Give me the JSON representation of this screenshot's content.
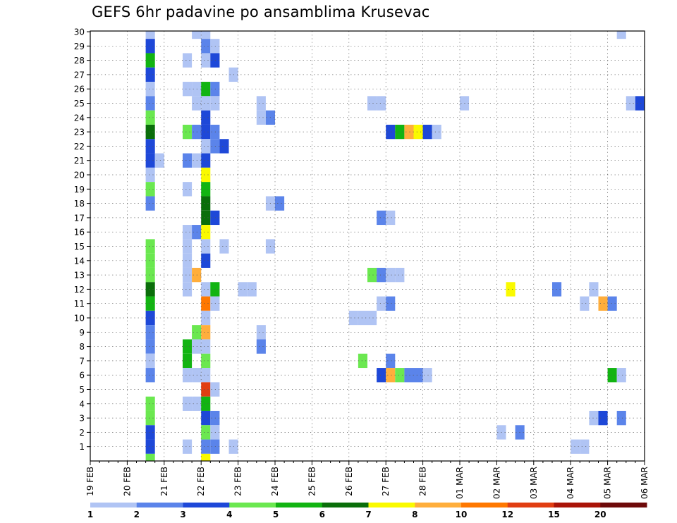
{
  "chart_data": {
    "type": "heatmap",
    "title": "GEFS 6hr padavine po ansamblima Krusevac",
    "xlabel": "",
    "ylabel": "",
    "x_tick_labels": [
      "19 FEB",
      "20 FEB",
      "21 FEB",
      "22 FEB",
      "23 FEB",
      "24 FEB",
      "25 FEB",
      "26 FEB",
      "27 FEB",
      "28 FEB",
      "01 MAR",
      "02 MAR",
      "03 MAR",
      "04 MAR",
      "05 MAR",
      "06 MAR"
    ],
    "y_tick_labels": [
      "1",
      "2",
      "3",
      "4",
      "5",
      "6",
      "7",
      "8",
      "9",
      "10",
      "11",
      "12",
      "13",
      "14",
      "15",
      "16",
      "17",
      "18",
      "19",
      "20",
      "21",
      "22",
      "23",
      "24",
      "25",
      "26",
      "27",
      "28",
      "29",
      "30"
    ],
    "x_range_steps": [
      0,
      60
    ],
    "y_range_members": [
      0,
      30
    ],
    "grid": true,
    "colorbar": {
      "labels": [
        "1",
        "2",
        "3",
        "4",
        "5",
        "6",
        "7",
        "8",
        "10",
        "12",
        "15",
        "20"
      ],
      "colors": [
        "#b0c4f4",
        "#5b84ea",
        "#1e48d8",
        "#6be850",
        "#12b412",
        "#0a6e0a",
        "#fafa00",
        "#ffae3c",
        "#ff7800",
        "#e13e12",
        "#aa1408",
        "#6e0a0a"
      ]
    },
    "cells_note": "each cell: [time step (6h steps after 19 FEB 00Z), ensemble member, color class index]",
    "cells": [
      [
        6,
        30,
        0
      ],
      [
        11,
        30,
        0
      ],
      [
        12,
        30,
        0
      ],
      [
        57,
        30,
        0
      ],
      [
        6,
        29,
        2
      ],
      [
        12,
        29,
        1
      ],
      [
        13,
        29,
        0
      ],
      [
        6,
        28,
        4
      ],
      [
        10,
        28,
        0
      ],
      [
        12,
        28,
        0
      ],
      [
        13,
        28,
        2
      ],
      [
        6,
        27,
        2
      ],
      [
        15,
        27,
        0
      ],
      [
        6,
        26,
        0
      ],
      [
        10,
        26,
        0
      ],
      [
        11,
        26,
        0
      ],
      [
        12,
        26,
        4
      ],
      [
        13,
        26,
        1
      ],
      [
        6,
        25,
        1
      ],
      [
        11,
        25,
        0
      ],
      [
        12,
        25,
        0
      ],
      [
        13,
        25,
        0
      ],
      [
        18,
        25,
        0
      ],
      [
        30,
        25,
        0
      ],
      [
        31,
        25,
        0
      ],
      [
        40,
        25,
        0
      ],
      [
        58,
        25,
        0
      ],
      [
        59,
        25,
        2
      ],
      [
        6,
        24,
        3
      ],
      [
        12,
        24,
        2
      ],
      [
        18,
        24,
        0
      ],
      [
        19,
        24,
        1
      ],
      [
        6,
        23,
        5
      ],
      [
        10,
        23,
        3
      ],
      [
        11,
        23,
        1
      ],
      [
        12,
        23,
        2
      ],
      [
        13,
        23,
        1
      ],
      [
        32,
        23,
        2
      ],
      [
        33,
        23,
        4
      ],
      [
        34,
        23,
        7
      ],
      [
        35,
        23,
        6
      ],
      [
        36,
        23,
        2
      ],
      [
        37,
        23,
        0
      ],
      [
        6,
        22,
        2
      ],
      [
        12,
        22,
        0
      ],
      [
        13,
        22,
        1
      ],
      [
        14,
        22,
        2
      ],
      [
        6,
        21,
        2
      ],
      [
        7,
        21,
        0
      ],
      [
        10,
        21,
        1
      ],
      [
        11,
        21,
        0
      ],
      [
        12,
        21,
        2
      ],
      [
        6,
        20,
        0
      ],
      [
        12,
        20,
        6
      ],
      [
        6,
        19,
        3
      ],
      [
        10,
        19,
        0
      ],
      [
        12,
        19,
        4
      ],
      [
        6,
        18,
        1
      ],
      [
        12,
        18,
        5
      ],
      [
        19,
        18,
        0
      ],
      [
        20,
        18,
        1
      ],
      [
        12,
        17,
        5
      ],
      [
        13,
        17,
        2
      ],
      [
        31,
        17,
        1
      ],
      [
        32,
        17,
        0
      ],
      [
        10,
        16,
        0
      ],
      [
        11,
        16,
        1
      ],
      [
        12,
        16,
        6
      ],
      [
        6,
        15,
        3
      ],
      [
        10,
        15,
        0
      ],
      [
        12,
        15,
        0
      ],
      [
        14,
        15,
        0
      ],
      [
        19,
        15,
        0
      ],
      [
        6,
        14,
        3
      ],
      [
        10,
        14,
        0
      ],
      [
        12,
        14,
        2
      ],
      [
        6,
        13,
        3
      ],
      [
        10,
        13,
        0
      ],
      [
        11,
        13,
        7
      ],
      [
        30,
        13,
        3
      ],
      [
        31,
        13,
        1
      ],
      [
        32,
        13,
        0
      ],
      [
        33,
        13,
        0
      ],
      [
        6,
        12,
        5
      ],
      [
        10,
        12,
        0
      ],
      [
        12,
        12,
        0
      ],
      [
        13,
        12,
        4
      ],
      [
        16,
        12,
        0
      ],
      [
        17,
        12,
        0
      ],
      [
        45,
        12,
        6
      ],
      [
        50,
        12,
        1
      ],
      [
        54,
        12,
        0
      ],
      [
        6,
        11,
        4
      ],
      [
        12,
        11,
        8
      ],
      [
        13,
        11,
        0
      ],
      [
        31,
        11,
        0
      ],
      [
        32,
        11,
        1
      ],
      [
        53,
        11,
        0
      ],
      [
        55,
        11,
        7
      ],
      [
        56,
        11,
        1
      ],
      [
        6,
        10,
        2
      ],
      [
        12,
        10,
        0
      ],
      [
        28,
        10,
        0
      ],
      [
        29,
        10,
        0
      ],
      [
        30,
        10,
        0
      ],
      [
        6,
        9,
        1
      ],
      [
        11,
        9,
        3
      ],
      [
        12,
        9,
        7
      ],
      [
        18,
        9,
        0
      ],
      [
        6,
        8,
        1
      ],
      [
        10,
        8,
        4
      ],
      [
        11,
        8,
        0
      ],
      [
        12,
        8,
        0
      ],
      [
        18,
        8,
        1
      ],
      [
        6,
        7,
        0
      ],
      [
        10,
        7,
        4
      ],
      [
        12,
        7,
        3
      ],
      [
        29,
        7,
        3
      ],
      [
        32,
        7,
        1
      ],
      [
        6,
        6,
        1
      ],
      [
        10,
        6,
        0
      ],
      [
        11,
        6,
        0
      ],
      [
        12,
        6,
        0
      ],
      [
        31,
        6,
        2
      ],
      [
        32,
        6,
        7
      ],
      [
        33,
        6,
        3
      ],
      [
        34,
        6,
        1
      ],
      [
        35,
        6,
        1
      ],
      [
        36,
        6,
        0
      ],
      [
        56,
        6,
        4
      ],
      [
        57,
        6,
        0
      ],
      [
        12,
        5,
        9
      ],
      [
        13,
        5,
        0
      ],
      [
        6,
        4,
        3
      ],
      [
        10,
        4,
        0
      ],
      [
        11,
        4,
        0
      ],
      [
        12,
        4,
        4
      ],
      [
        6,
        3,
        3
      ],
      [
        12,
        3,
        2
      ],
      [
        13,
        3,
        1
      ],
      [
        54,
        3,
        0
      ],
      [
        55,
        3,
        2
      ],
      [
        57,
        3,
        1
      ],
      [
        6,
        2,
        2
      ],
      [
        12,
        2,
        3
      ],
      [
        13,
        2,
        0
      ],
      [
        44,
        2,
        0
      ],
      [
        46,
        2,
        1
      ],
      [
        6,
        1,
        2
      ],
      [
        10,
        1,
        0
      ],
      [
        12,
        1,
        1
      ],
      [
        13,
        1,
        1
      ],
      [
        15,
        1,
        0
      ],
      [
        52,
        1,
        0
      ],
      [
        53,
        1,
        0
      ],
      [
        6,
        0,
        3
      ],
      [
        12,
        0,
        6
      ]
    ]
  }
}
